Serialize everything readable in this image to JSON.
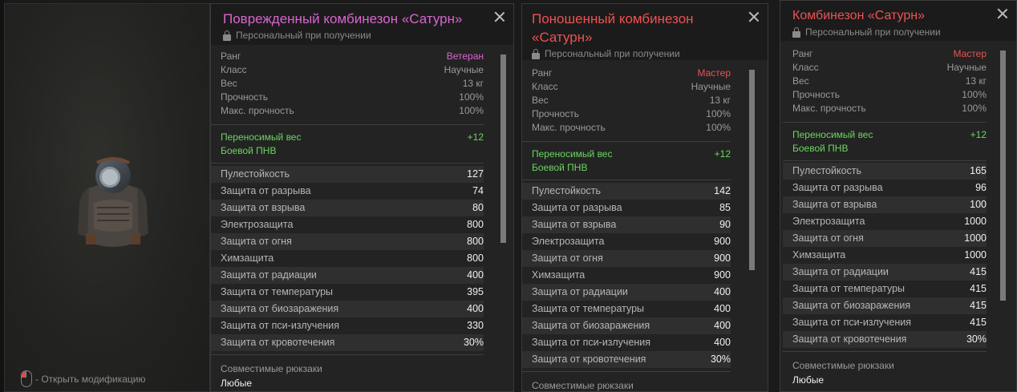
{
  "preview": {
    "hint": "- Открыть модификацию"
  },
  "labels": {
    "rank": "Ранг",
    "class": "Класс",
    "weight": "Вес",
    "durability": "Прочность",
    "max_durability": "Макс. прочность",
    "bonus": "Переносимый вес",
    "nvg": "Боевой ПНВ",
    "backpacks": "Совместимые рюкзаки",
    "lock": "Персональный при получении"
  },
  "stat_labels": [
    "Пулестойкость",
    "Защита от разрыва",
    "Защита от взрыва",
    "Электрозащита",
    "Защита от огня",
    "Химзащита",
    "Защита от радиации",
    "Защита от температуры",
    "Защита от биозаражения",
    "Защита от пси-излучения",
    "Защита от кровотечения"
  ],
  "panels": [
    {
      "title": "Поврежденный комбинезон «Сатурн»",
      "title_color": "#d865cf",
      "rank": "Ветеран",
      "rank_color": "#d865cf",
      "class": "Научные",
      "weight": "13 кг",
      "durability": "100%",
      "max_durability": "100%",
      "bonus_value": "+12",
      "stats": [
        "127",
        "74",
        "80",
        "800",
        "800",
        "800",
        "400",
        "395",
        "400",
        "330",
        "30%"
      ],
      "backpacks": "Любые"
    },
    {
      "title": "Поношенный комбинезон «Сатурн»",
      "title_color": "#ec5252",
      "rank": "Мастер",
      "rank_color": "#ec5252",
      "class": "Научные",
      "weight": "13 кг",
      "durability": "100%",
      "max_durability": "100%",
      "bonus_value": "+12",
      "stats": [
        "142",
        "85",
        "90",
        "900",
        "900",
        "900",
        "400",
        "400",
        "400",
        "400",
        "30%"
      ],
      "backpacks": ""
    },
    {
      "title": "Комбинезон «Сатурн»",
      "title_color": "#ec5252",
      "rank": "Мастер",
      "rank_color": "#ec5252",
      "class": "Научные",
      "weight": "13 кг",
      "durability": "100%",
      "max_durability": "100%",
      "bonus_value": "+12",
      "stats": [
        "165",
        "96",
        "100",
        "1000",
        "1000",
        "1000",
        "415",
        "415",
        "415",
        "415",
        "30%"
      ],
      "backpacks": "Любые"
    }
  ]
}
